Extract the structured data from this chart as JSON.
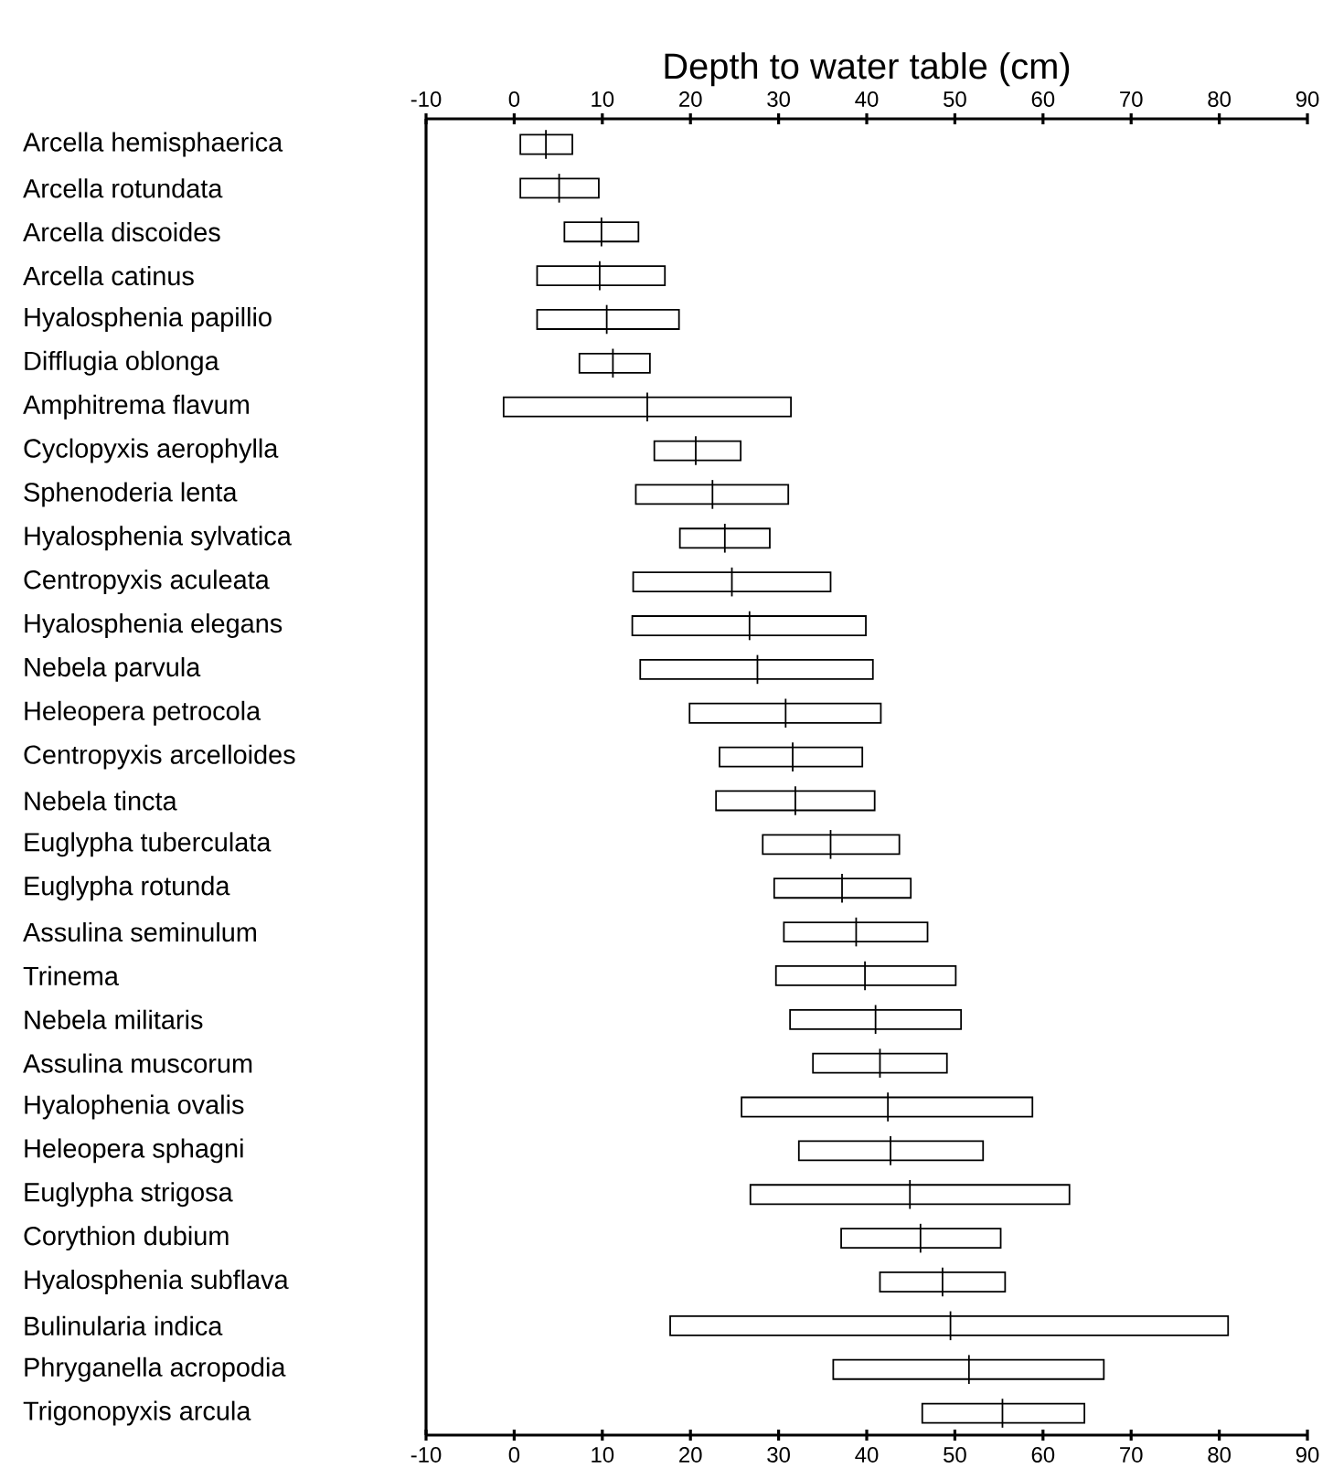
{
  "chart_data": {
    "type": "box",
    "orientation": "horizontal",
    "x2label": "Depth to water table (cm)",
    "categories": [
      "Arcella hemisphaerica",
      "Arcella rotundata",
      "Arcella discoides",
      "Arcella catinus",
      "Hyalosphenia papillio",
      "Difflugia oblonga",
      "Amphitrema flavum",
      "Cyclopyxis aerophylla",
      "Sphenoderia lenta",
      "Hyalosphenia sylvatica",
      "Centropyxis aculeata",
      "Hyalosphenia elegans",
      "Nebela parvula",
      "Heleopera petrocola",
      "Centropyxis arcelloides",
      "Nebela tincta",
      "Euglypha tuberculata",
      "Euglypha rotunda",
      "Assulina seminulum",
      "Trinema",
      "Nebela militaris",
      "Assulina muscorum",
      "Hyalophenia ovalis",
      "Heleopera sphagni",
      "Euglypha strigosa",
      "Corythion dubium",
      "Hyalosphenia subflava",
      "Bulinularia indica",
      "Phryganella acropodia",
      "Trigonopyxis arcula"
    ],
    "boxes": [
      {
        "low": 0.7,
        "q1": 0.7,
        "median": 3.6,
        "q3": 6.6,
        "high": 6.6
      },
      {
        "low": 0.7,
        "q1": 0.7,
        "median": 5.1,
        "q3": 9.6,
        "high": 9.6
      },
      {
        "low": 5.7,
        "q1": 5.7,
        "median": 9.9,
        "q3": 14.1,
        "high": 14.1
      },
      {
        "low": 2.6,
        "q1": 2.6,
        "median": 9.7,
        "q3": 17.1,
        "high": 17.1
      },
      {
        "low": 2.6,
        "q1": 2.6,
        "median": 10.5,
        "q3": 18.7,
        "high": 18.7
      },
      {
        "low": 7.4,
        "q1": 7.4,
        "median": 11.2,
        "q3": 15.4,
        "high": 15.4
      },
      {
        "low": -1.2,
        "q1": -1.2,
        "median": 15.1,
        "q3": 31.4,
        "high": 31.4
      },
      {
        "low": 15.9,
        "q1": 15.9,
        "median": 20.6,
        "q3": 25.7,
        "high": 25.7
      },
      {
        "low": 13.8,
        "q1": 13.8,
        "median": 22.5,
        "q3": 31.1,
        "high": 31.1
      },
      {
        "low": 18.8,
        "q1": 18.8,
        "median": 23.9,
        "q3": 29.0,
        "high": 29.0
      },
      {
        "low": 13.5,
        "q1": 13.5,
        "median": 24.7,
        "q3": 35.9,
        "high": 35.9
      },
      {
        "low": 13.4,
        "q1": 13.4,
        "median": 26.7,
        "q3": 39.9,
        "high": 39.9
      },
      {
        "low": 14.3,
        "q1": 14.3,
        "median": 27.6,
        "q3": 40.7,
        "high": 40.7
      },
      {
        "low": 19.9,
        "q1": 19.9,
        "median": 30.8,
        "q3": 41.6,
        "high": 41.6
      },
      {
        "low": 23.3,
        "q1": 23.3,
        "median": 31.6,
        "q3": 39.5,
        "high": 39.5
      },
      {
        "low": 22.9,
        "q1": 22.9,
        "median": 31.9,
        "q3": 40.9,
        "high": 40.9
      },
      {
        "low": 28.2,
        "q1": 28.2,
        "median": 35.9,
        "q3": 43.7,
        "high": 43.7
      },
      {
        "low": 29.5,
        "q1": 29.5,
        "median": 37.2,
        "q3": 45.0,
        "high": 45.0
      },
      {
        "low": 30.6,
        "q1": 30.6,
        "median": 38.8,
        "q3": 46.9,
        "high": 46.9
      },
      {
        "low": 29.7,
        "q1": 29.7,
        "median": 39.8,
        "q3": 50.1,
        "high": 50.1
      },
      {
        "low": 31.3,
        "q1": 31.3,
        "median": 41.0,
        "q3": 50.7,
        "high": 50.7
      },
      {
        "low": 33.9,
        "q1": 33.9,
        "median": 41.5,
        "q3": 49.1,
        "high": 49.1
      },
      {
        "low": 25.8,
        "q1": 25.8,
        "median": 42.4,
        "q3": 58.8,
        "high": 58.8
      },
      {
        "low": 32.3,
        "q1": 32.3,
        "median": 42.7,
        "q3": 53.2,
        "high": 53.2
      },
      {
        "low": 26.8,
        "q1": 26.8,
        "median": 44.9,
        "q3": 63.0,
        "high": 63.0
      },
      {
        "low": 37.1,
        "q1": 37.1,
        "median": 46.1,
        "q3": 55.2,
        "high": 55.2
      },
      {
        "low": 41.5,
        "q1": 41.5,
        "median": 48.6,
        "q3": 55.7,
        "high": 55.7
      },
      {
        "low": 17.7,
        "q1": 17.7,
        "median": 49.5,
        "q3": 81.0,
        "high": 81.0
      },
      {
        "low": 36.2,
        "q1": 36.2,
        "median": 51.6,
        "q3": 66.9,
        "high": 66.9
      },
      {
        "low": 46.3,
        "q1": 46.3,
        "median": 55.4,
        "q3": 64.7,
        "high": 64.7
      }
    ],
    "xlim": [
      -10,
      90
    ],
    "xticks": [
      -10,
      0,
      10,
      20,
      30,
      40,
      50,
      60,
      70,
      80,
      90
    ],
    "x2lim": [
      -10,
      90
    ],
    "x2ticks": [
      -10,
      0,
      10,
      20,
      30,
      40,
      50,
      60,
      70,
      80,
      90
    ],
    "grid": false
  }
}
